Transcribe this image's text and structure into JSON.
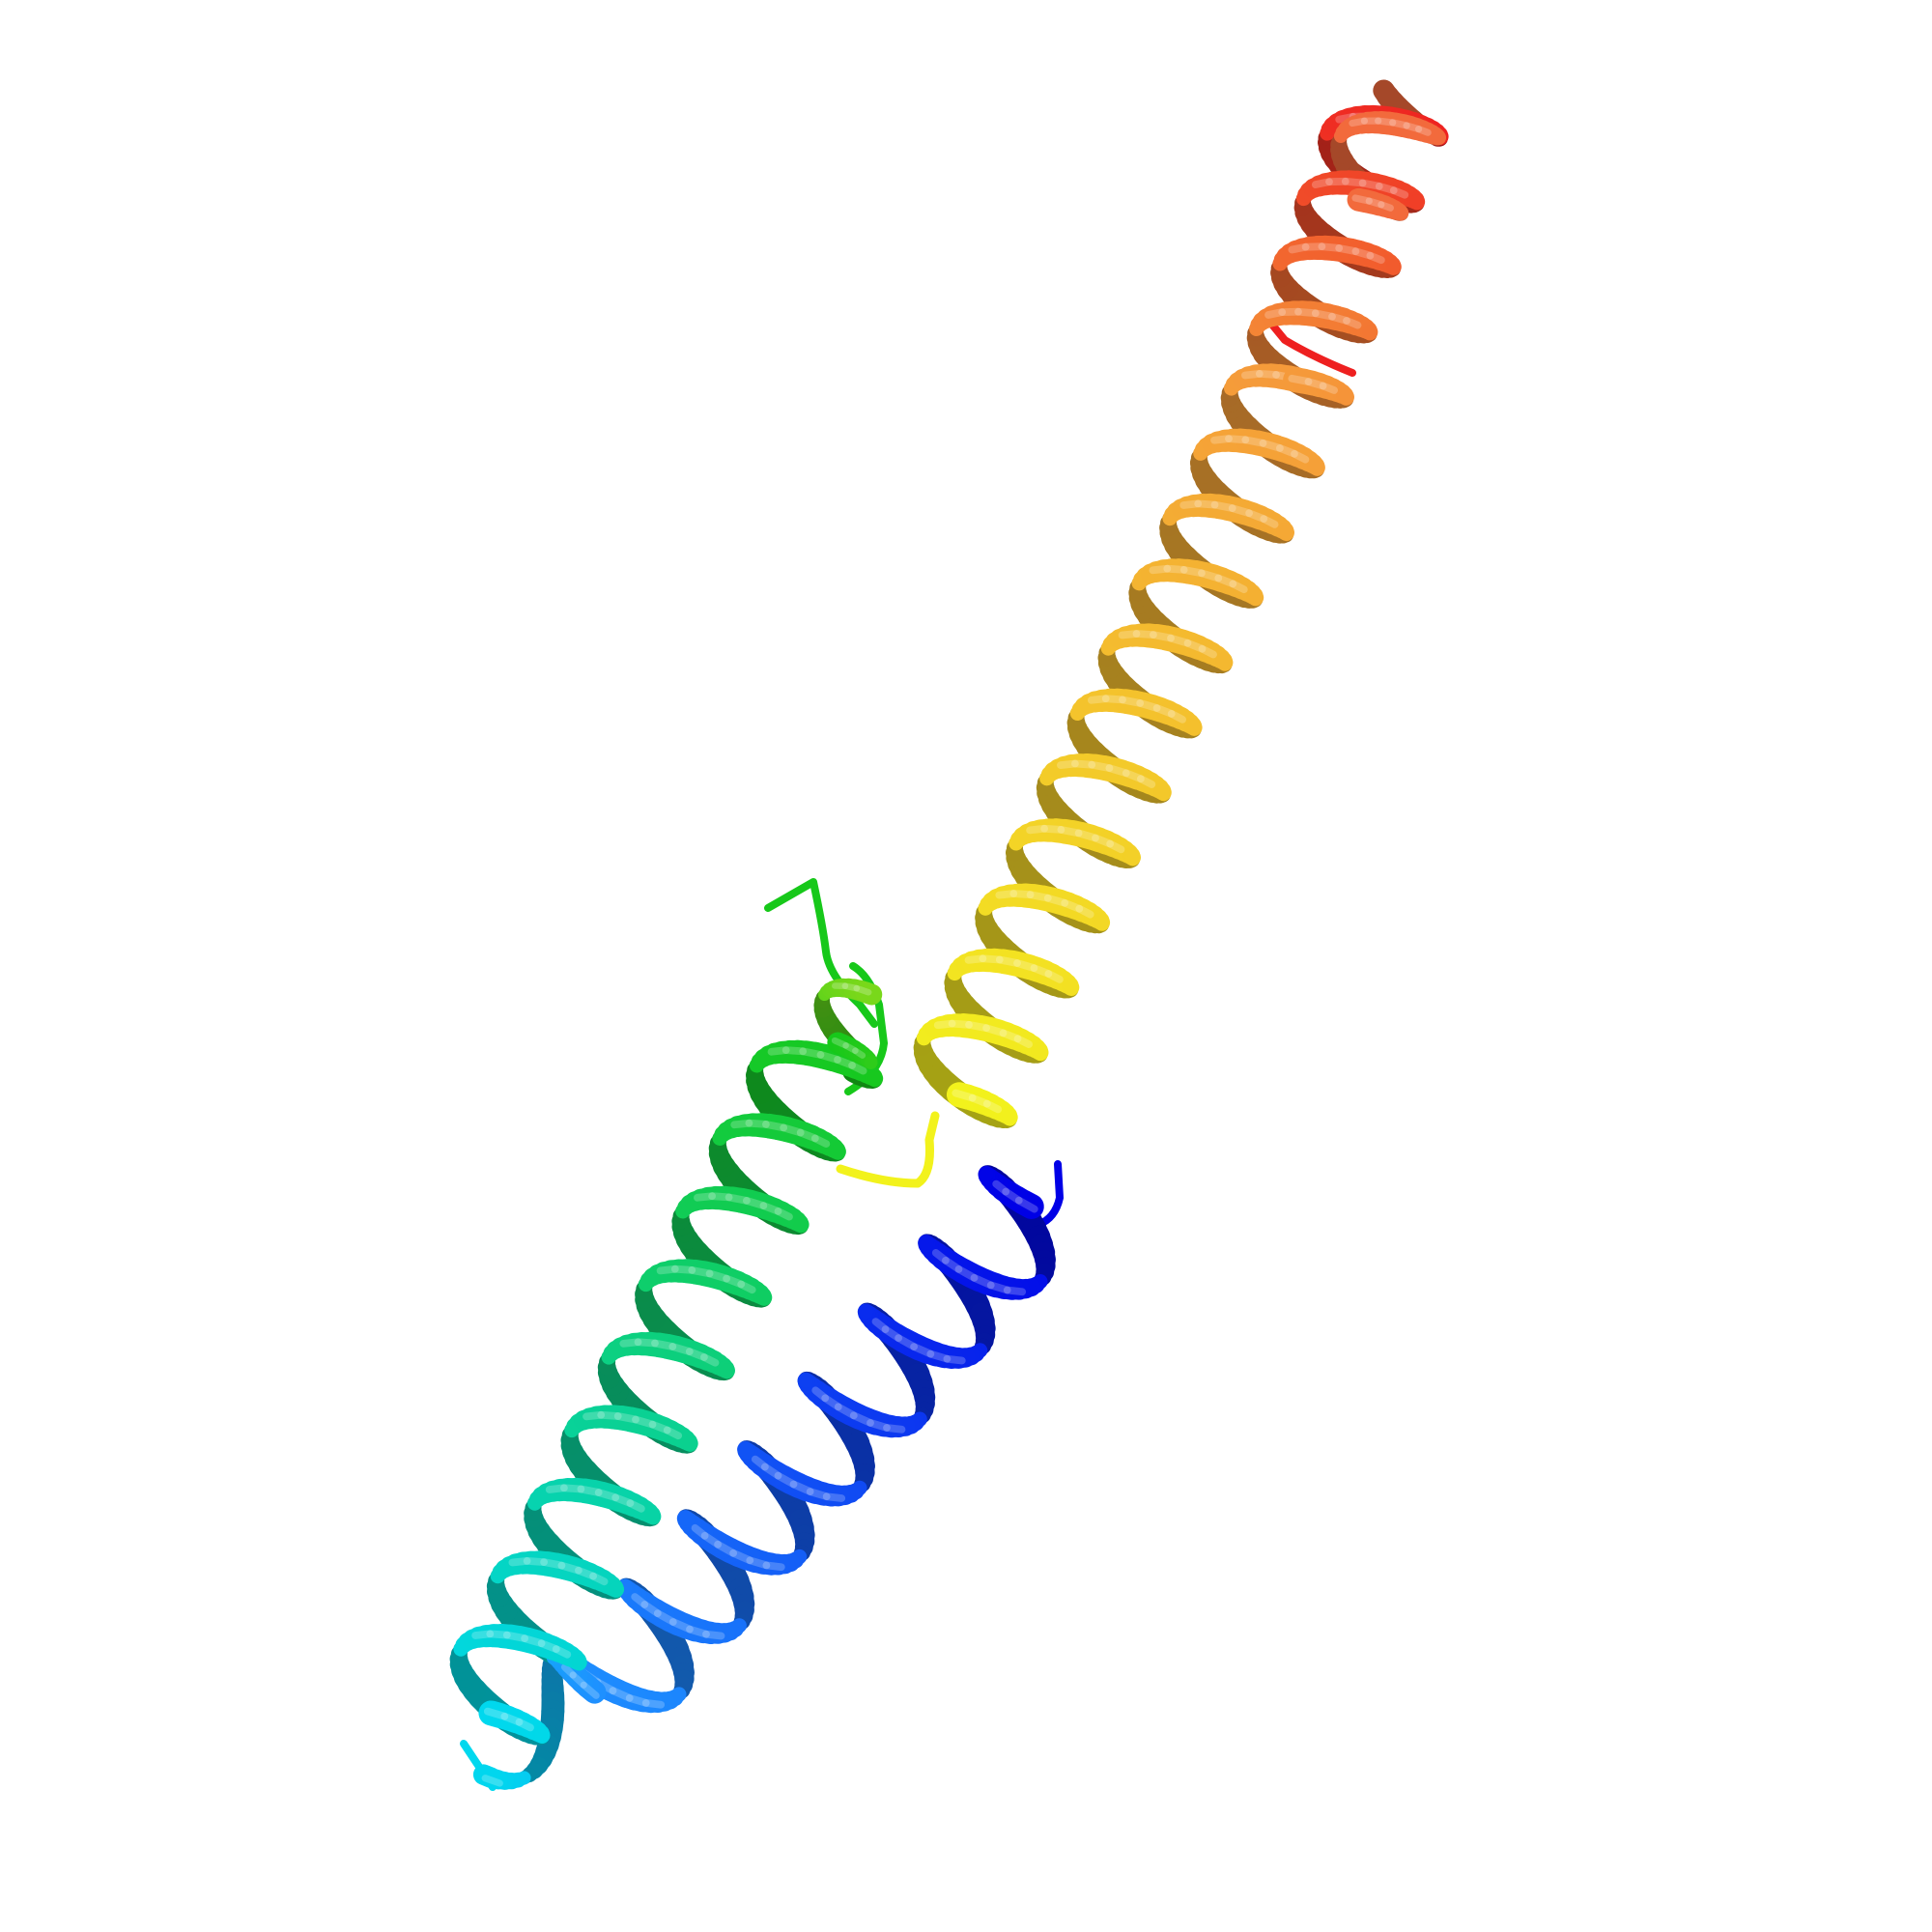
{
  "image": {
    "subject": "protein-cartoon",
    "style": "ribbon",
    "background": "#ffffff"
  },
  "palette": {
    "n_terminus": "#0000e6",
    "blue": "#1a3cff",
    "azure": "#1e90ff",
    "cyan": "#00d8ee",
    "teal": "#19e0a8",
    "green": "#17c81a",
    "lime": "#7cd81a",
    "yellow": "#f2f21c",
    "amber": "#f5d11e",
    "orange": "#f59a3a",
    "tomato": "#f26a3c",
    "c_terminus": "#ee2020"
  }
}
